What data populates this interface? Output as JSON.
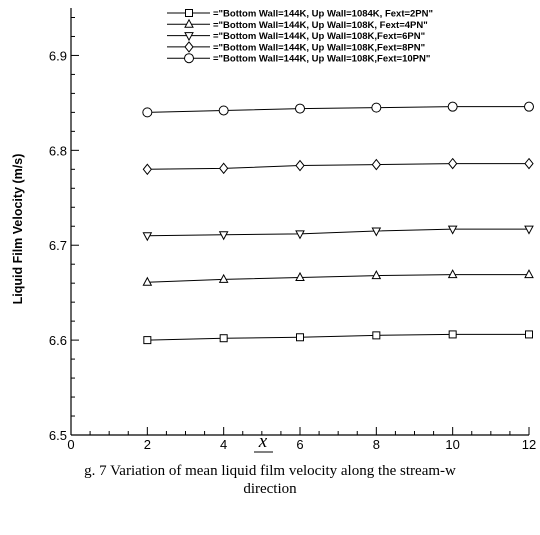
{
  "chart_data": {
    "type": "line",
    "xlabel_numerator": "x",
    "xlabel_denominator": "σ",
    "ylabel": "Liquid Film Velocity (m/s)",
    "xlim": [
      0,
      12
    ],
    "ylim": [
      6.5,
      6.95
    ],
    "xticks": [
      0,
      2,
      4,
      6,
      8,
      10,
      12
    ],
    "yticks": [
      6.5,
      6.6,
      6.7,
      6.8,
      6.9
    ],
    "x": [
      2,
      4,
      6,
      8,
      10,
      12
    ],
    "series": [
      {
        "name": "=\"Bottom Wall=144K, Up Wall=1084K, Fext=2PN\"",
        "marker": "square",
        "values": [
          6.6,
          6.602,
          6.603,
          6.605,
          6.606,
          6.606
        ]
      },
      {
        "name": "=\"Bottom Wall=144K, Up Wall=108K, Fext=4PN\"",
        "marker": "triangle-up",
        "values": [
          6.661,
          6.664,
          6.666,
          6.668,
          6.669,
          6.669
        ]
      },
      {
        "name": "=\"Bottom Wall=144K, Up  Wall=108K,Fext=6PN\"",
        "marker": "triangle-down",
        "values": [
          6.71,
          6.711,
          6.712,
          6.715,
          6.717,
          6.717
        ]
      },
      {
        "name": "=\"Bottom Wall=144K, Up  Wall=108K,Fext=8PN\"",
        "marker": "diamond",
        "values": [
          6.78,
          6.781,
          6.784,
          6.785,
          6.786,
          6.786
        ]
      },
      {
        "name": "=\"Bottom Wall=144K, Up  Wall=108K,Fext=10PN\"",
        "marker": "circle",
        "values": [
          6.84,
          6.842,
          6.844,
          6.845,
          6.846,
          6.846
        ]
      }
    ],
    "legend_position": "top-right",
    "grid": false
  },
  "caption": {
    "line1": "g. 7 Variation of mean liquid film velocity along the stream-w",
    "line2": "direction"
  }
}
